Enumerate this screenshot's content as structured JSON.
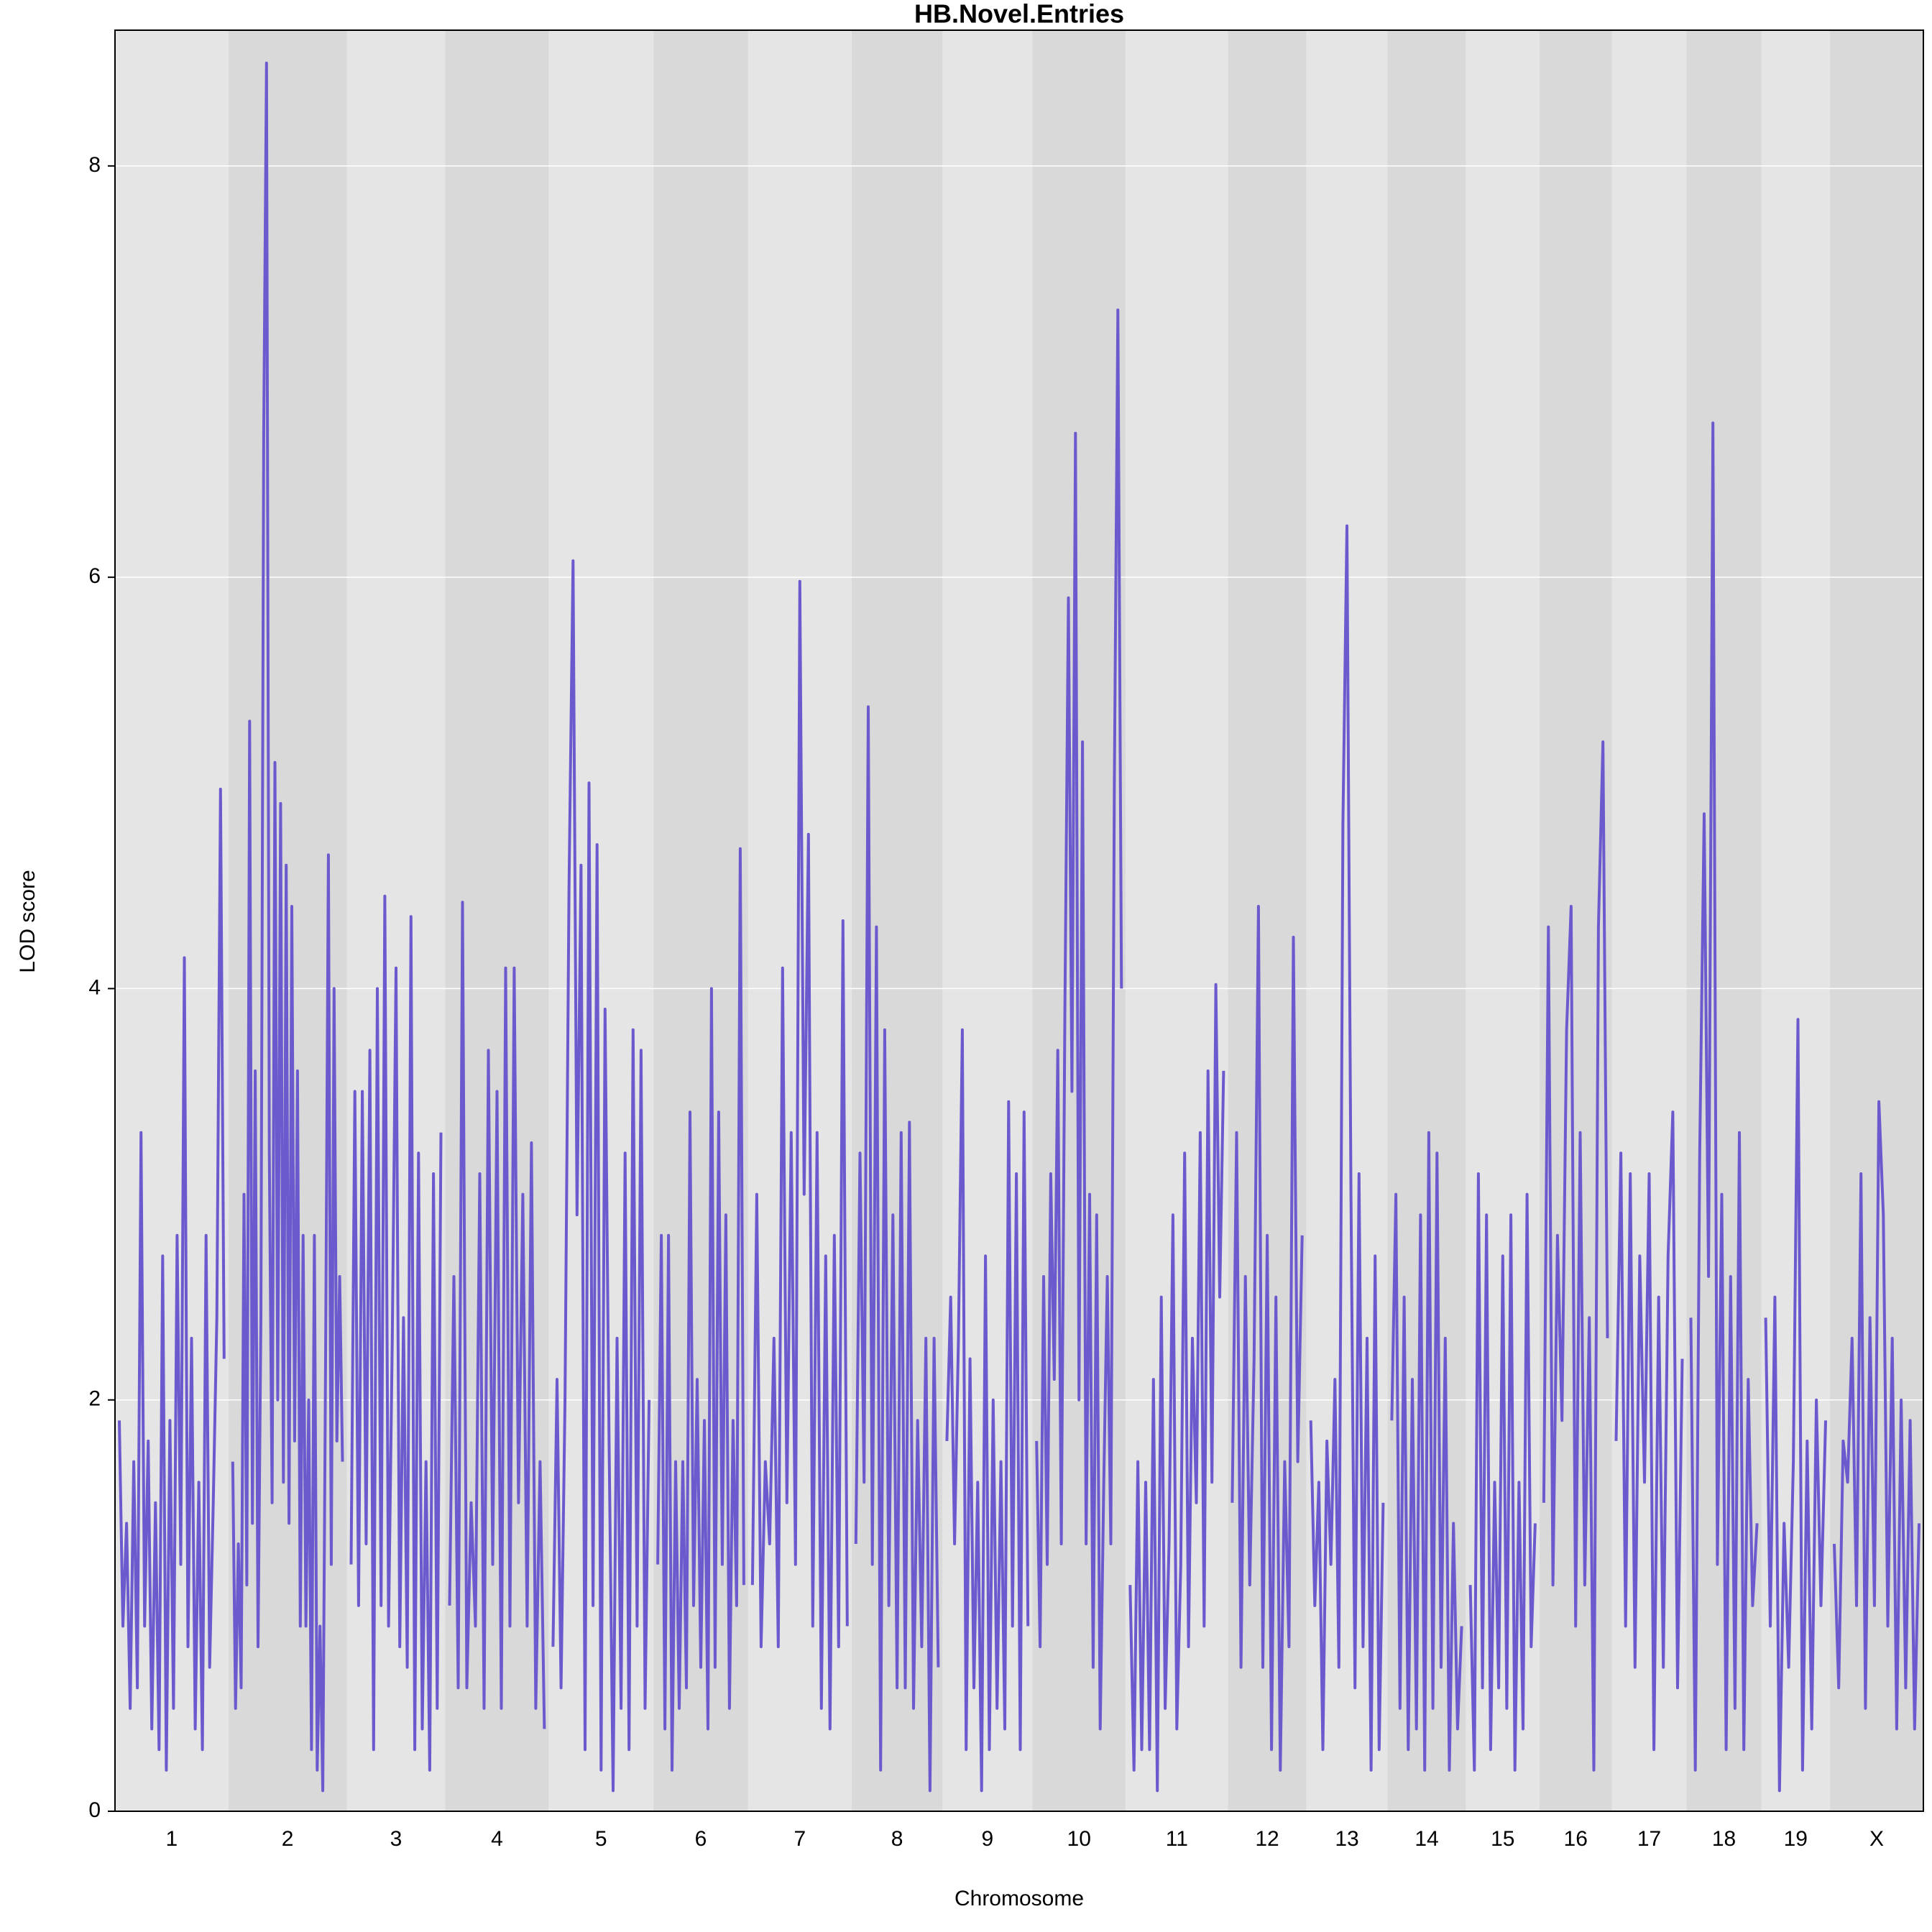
{
  "chart_data": {
    "type": "line",
    "title": "HB.Novel.Entries",
    "x_label": "Chromosome",
    "y_label": "LOD score",
    "color": "#6a5acd",
    "ylim": [
      0,
      8.66
    ],
    "yticks": [
      0,
      2,
      4,
      6,
      8
    ],
    "grid": true,
    "chromosomes": [
      {
        "name": "1",
        "length": 91,
        "values": [
          1.9,
          0.9,
          1.4,
          0.5,
          1.7,
          0.6,
          3.3,
          0.9,
          1.8,
          0.4,
          1.5,
          0.3,
          2.7,
          0.2,
          1.9,
          0.5,
          2.8,
          1.2,
          4.15,
          0.8,
          2.3,
          0.4,
          1.6,
          0.3,
          2.8,
          0.7,
          1.5,
          2.4,
          4.97,
          2.2
        ]
      },
      {
        "name": "2",
        "length": 95,
        "values": [
          1.7,
          0.5,
          1.3,
          0.6,
          3.0,
          1.1,
          5.3,
          1.4,
          3.6,
          0.8,
          2.4,
          6.7,
          8.5,
          3.2,
          1.5,
          5.1,
          2.0,
          4.9,
          1.6,
          4.6,
          1.4,
          4.4,
          1.8,
          3.6,
          0.9,
          2.8,
          0.9,
          2.0,
          0.3,
          2.8,
          0.2,
          0.9,
          0.1,
          2.2,
          4.65,
          1.2,
          4.0,
          1.8,
          2.6,
          1.7
        ]
      },
      {
        "name": "3",
        "length": 79,
        "values": [
          1.2,
          3.5,
          1.0,
          3.5,
          1.3,
          3.7,
          0.3,
          4.0,
          1.0,
          4.45,
          0.9,
          2.3,
          4.1,
          0.8,
          2.4,
          0.7,
          4.35,
          0.3,
          3.2,
          0.4,
          1.7,
          0.2,
          3.1,
          0.5,
          3.3
        ]
      },
      {
        "name": "4",
        "length": 83,
        "values": [
          1.0,
          2.6,
          0.6,
          4.42,
          0.6,
          1.5,
          0.9,
          3.1,
          0.5,
          3.7,
          1.2,
          3.5,
          0.5,
          4.1,
          0.9,
          4.1,
          1.5,
          3.0,
          0.9,
          3.25,
          0.5,
          1.7,
          0.4
        ]
      },
      {
        "name": "5",
        "length": 84,
        "values": [
          0.8,
          2.1,
          0.6,
          2.0,
          4.5,
          6.08,
          2.9,
          4.6,
          0.3,
          5.0,
          1.0,
          4.7,
          0.2,
          3.9,
          1.8,
          0.1,
          2.3,
          0.5,
          3.2,
          0.3,
          3.8,
          0.9,
          3.7,
          0.5,
          2.0
        ]
      },
      {
        "name": "6",
        "length": 76,
        "values": [
          1.2,
          2.8,
          0.4,
          2.8,
          0.2,
          1.7,
          0.5,
          1.7,
          0.6,
          3.4,
          1.0,
          2.1,
          0.7,
          1.9,
          0.4,
          4.0,
          0.7,
          3.4,
          1.2,
          2.9,
          0.5,
          1.9,
          1.0,
          4.68,
          1.1
        ]
      },
      {
        "name": "7",
        "length": 83,
        "values": [
          1.1,
          3.0,
          0.8,
          1.7,
          1.3,
          2.3,
          0.8,
          4.1,
          1.5,
          3.3,
          1.2,
          5.98,
          3.0,
          4.75,
          0.9,
          3.3,
          0.5,
          2.7,
          0.4,
          2.8,
          0.8,
          4.33,
          0.9
        ]
      },
      {
        "name": "8",
        "length": 73,
        "values": [
          1.3,
          3.2,
          1.6,
          5.37,
          1.2,
          4.3,
          0.2,
          3.8,
          1.0,
          2.9,
          0.6,
          3.3,
          0.6,
          3.35,
          0.5,
          1.9,
          0.8,
          2.3,
          0.1,
          2.3,
          0.7
        ]
      },
      {
        "name": "9",
        "length": 72,
        "values": [
          1.8,
          2.5,
          1.3,
          2.3,
          3.8,
          0.3,
          2.2,
          0.6,
          1.6,
          0.1,
          2.7,
          0.3,
          2.0,
          0.5,
          1.7,
          0.4,
          3.45,
          0.9,
          3.1,
          0.3,
          3.4,
          0.9
        ]
      },
      {
        "name": "10",
        "length": 75,
        "values": [
          1.8,
          0.8,
          2.6,
          1.2,
          3.1,
          2.1,
          3.7,
          1.3,
          3.9,
          5.9,
          3.5,
          6.7,
          2.0,
          5.2,
          1.3,
          3.0,
          0.7,
          2.9,
          0.4,
          1.6,
          2.6,
          1.3,
          5.0,
          7.3,
          4.0
        ]
      },
      {
        "name": "11",
        "length": 82,
        "values": [
          1.1,
          0.2,
          1.7,
          0.3,
          1.6,
          0.3,
          2.1,
          0.1,
          2.5,
          0.5,
          1.3,
          2.9,
          0.4,
          1.2,
          3.2,
          0.8,
          2.3,
          1.5,
          3.3,
          0.9,
          3.6,
          1.6,
          4.02,
          2.5,
          3.6
        ]
      },
      {
        "name": "12",
        "length": 63,
        "values": [
          1.5,
          3.3,
          0.7,
          2.6,
          1.1,
          2.2,
          4.4,
          0.7,
          2.8,
          0.3,
          2.5,
          0.2,
          1.7,
          0.8,
          4.25,
          1.7,
          2.8
        ]
      },
      {
        "name": "13",
        "length": 65,
        "values": [
          1.9,
          1.0,
          1.6,
          0.3,
          1.8,
          1.2,
          2.1,
          0.7,
          4.8,
          6.25,
          3.0,
          0.6,
          3.1,
          0.8,
          2.3,
          0.2,
          2.7,
          0.3,
          1.5
        ]
      },
      {
        "name": "14",
        "length": 63,
        "values": [
          1.9,
          3.0,
          0.5,
          2.5,
          0.3,
          2.1,
          0.4,
          2.9,
          0.2,
          3.3,
          0.5,
          3.2,
          0.7,
          2.3,
          0.2,
          1.4,
          0.4,
          0.9
        ]
      },
      {
        "name": "15",
        "length": 59,
        "values": [
          1.1,
          0.2,
          3.1,
          0.6,
          2.9,
          0.3,
          1.6,
          0.6,
          2.7,
          0.5,
          2.9,
          0.2,
          1.6,
          0.4,
          3.0,
          0.8,
          1.4
        ]
      },
      {
        "name": "16",
        "length": 58,
        "values": [
          1.5,
          4.3,
          1.1,
          2.8,
          1.9,
          3.8,
          4.4,
          0.9,
          3.3,
          1.1,
          2.4,
          0.2,
          4.3,
          5.2,
          2.3
        ]
      },
      {
        "name": "17",
        "length": 60,
        "values": [
          1.8,
          3.2,
          0.9,
          3.1,
          0.7,
          2.7,
          1.6,
          3.1,
          0.3,
          2.5,
          0.7,
          2.7,
          3.4,
          0.6,
          2.2
        ]
      },
      {
        "name": "18",
        "length": 60,
        "values": [
          2.4,
          0.2,
          3.2,
          4.85,
          2.6,
          6.75,
          1.2,
          3.0,
          0.3,
          2.6,
          0.5,
          3.3,
          0.3,
          2.1,
          1.0,
          1.4
        ]
      },
      {
        "name": "19",
        "length": 55,
        "values": [
          2.4,
          0.9,
          2.5,
          0.1,
          1.4,
          0.7,
          1.7,
          3.85,
          0.2,
          1.8,
          0.4,
          2.0,
          1.0,
          1.9
        ]
      },
      {
        "name": "X",
        "length": 75,
        "values": [
          1.3,
          0.6,
          1.8,
          1.6,
          2.3,
          1.0,
          3.1,
          0.5,
          2.4,
          1.0,
          3.45,
          2.9,
          0.9,
          2.3,
          0.4,
          2.0,
          0.6,
          1.9,
          0.4,
          1.4
        ]
      }
    ]
  }
}
